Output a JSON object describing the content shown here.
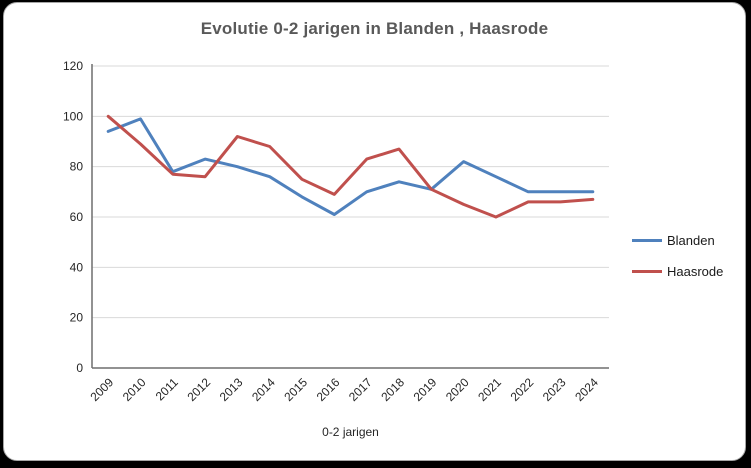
{
  "chart_data": {
    "type": "line",
    "title": "Evolutie 0-2 jarigen in Blanden , Haasrode",
    "xlabel": "0-2 jarigen",
    "ylabel": "",
    "ylim": [
      0,
      120
    ],
    "y_ticks": [
      0,
      20,
      40,
      60,
      80,
      100,
      120
    ],
    "grid": "horizontal",
    "legend_position": "right",
    "categories": [
      "2009",
      "2010",
      "2011",
      "2012",
      "2013",
      "2014",
      "2015",
      "2016",
      "2017",
      "2018",
      "2019",
      "2020",
      "2021",
      "2022",
      "2023",
      "2024"
    ],
    "series": [
      {
        "name": "Blanden",
        "color": "#4F81BD",
        "values": [
          94,
          99,
          78,
          83,
          80,
          76,
          68,
          61,
          70,
          74,
          71,
          82,
          76,
          70,
          70,
          70
        ]
      },
      {
        "name": "Haasrode",
        "color": "#C0504D",
        "values": [
          100,
          89,
          77,
          76,
          92,
          88,
          75,
          69,
          83,
          87,
          71,
          65,
          60,
          66,
          66,
          67
        ]
      }
    ]
  },
  "frame": {
    "background": "#FFFFFF",
    "border_color": "#A6A6A6",
    "title_color": "#595959",
    "gridline_color": "#D9D9D9",
    "axis_color": "#6E6E6E"
  }
}
